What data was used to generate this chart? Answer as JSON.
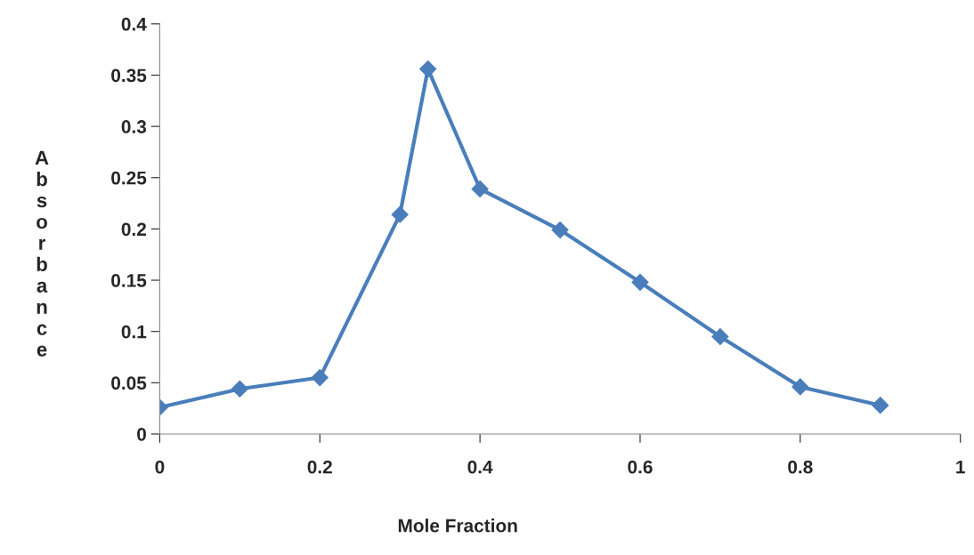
{
  "chart_data": {
    "type": "line",
    "xlabel": "Mole Fraction",
    "ylabel": "Absorbance",
    "x": [
      0,
      0.1,
      0.2,
      0.3,
      0.335,
      0.4,
      0.5,
      0.6,
      0.7,
      0.8,
      0.9
    ],
    "series": [
      {
        "color": "#4a7ebb",
        "values": [
          0.026,
          0.044,
          0.055,
          0.214,
          0.356,
          0.239,
          0.199,
          0.148,
          0.095,
          0.046,
          0.028
        ]
      }
    ],
    "xlim": [
      0,
      1
    ],
    "xticks": [
      0,
      0.2,
      0.4,
      0.6,
      0.8,
      1
    ],
    "ylim": [
      0,
      0.4
    ],
    "yticks": [
      0,
      0.05,
      0.1,
      0.15,
      0.2,
      0.25,
      0.3,
      0.35,
      0.4
    ],
    "marker": "diamond",
    "line_style": "solid",
    "grid": false,
    "legend": false
  }
}
